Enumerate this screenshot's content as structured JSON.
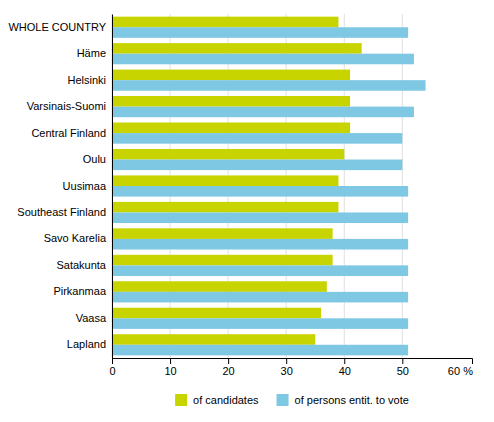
{
  "chart_data": {
    "type": "bar",
    "orientation": "horizontal",
    "categories": [
      "WHOLE COUNTRY",
      "Häme",
      "Helsinki",
      "Varsinais-Suomi",
      "Central Finland",
      "Oulu",
      "Uusimaa",
      "Southeast Finland",
      "Savo Karelia",
      "Satakunta",
      "Pirkanmaa",
      "Vaasa",
      "Lapland"
    ],
    "series": [
      {
        "name": "of candidates",
        "color": "#c8d400",
        "values": [
          39,
          43,
          41,
          41,
          41,
          40,
          39,
          39,
          38,
          38,
          37,
          36,
          35
        ]
      },
      {
        "name": "of persons entit. to vote",
        "color": "#7ec8e3",
        "values": [
          51,
          52,
          54,
          52,
          50,
          50,
          51,
          51,
          51,
          51,
          51,
          51,
          51
        ]
      }
    ],
    "xlim": [
      0,
      62
    ],
    "xticks": [
      0,
      10,
      20,
      30,
      40,
      50
    ],
    "annotations": [
      {
        "text": "60 %",
        "x": 60
      }
    ],
    "grid": true,
    "legend": "bottom"
  }
}
